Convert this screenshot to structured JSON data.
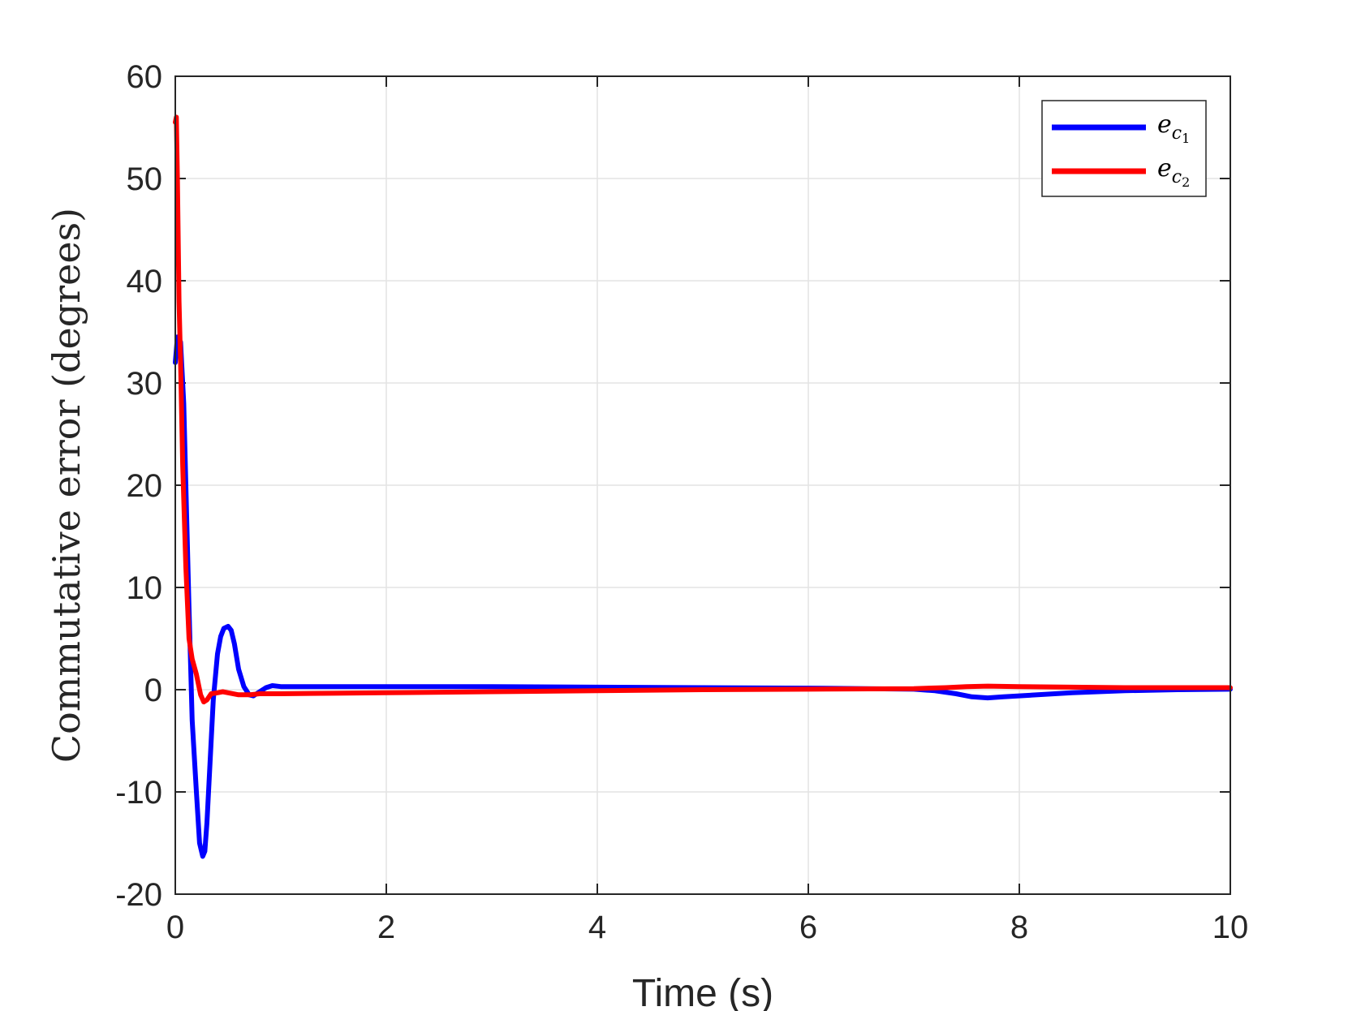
{
  "chart_data": {
    "type": "line",
    "title": "",
    "xlabel": "Time (s)",
    "ylabel": "Commutative error (degrees)",
    "xlim": [
      0,
      10
    ],
    "ylim": [
      -20,
      60
    ],
    "xticks": [
      0,
      2,
      4,
      6,
      8,
      10
    ],
    "yticks": [
      -20,
      -10,
      0,
      10,
      20,
      30,
      40,
      50,
      60
    ],
    "xtick_labels": [
      "0",
      "2",
      "4",
      "6",
      "8",
      "10"
    ],
    "ytick_labels": [
      "-20",
      "-10",
      "0",
      "10",
      "20",
      "30",
      "40",
      "50",
      "60"
    ],
    "grid": true,
    "legend_position": "top-right",
    "series": [
      {
        "name": "e_c1",
        "legend": {
          "base": "e",
          "sub": "c",
          "subsub": "1"
        },
        "color": "#0000ff",
        "x": [
          0,
          0.02,
          0.05,
          0.08,
          0.1,
          0.13,
          0.16,
          0.2,
          0.23,
          0.26,
          0.28,
          0.3,
          0.33,
          0.36,
          0.4,
          0.43,
          0.46,
          0.5,
          0.53,
          0.56,
          0.6,
          0.65,
          0.7,
          0.74,
          0.8,
          0.86,
          0.92,
          1.0,
          1.5,
          2,
          3,
          4,
          5,
          6,
          7,
          7.2,
          7.4,
          7.55,
          7.7,
          7.85,
          8,
          8.5,
          9,
          9.5,
          10
        ],
        "y": [
          32,
          34.5,
          34,
          28,
          20,
          8,
          -3,
          -10,
          -15,
          -16.3,
          -15.8,
          -13,
          -7,
          -1,
          3.5,
          5.2,
          6,
          6.2,
          5.8,
          4.5,
          2,
          0.3,
          -0.5,
          -0.6,
          -0.2,
          0.2,
          0.4,
          0.3,
          0.3,
          0.3,
          0.3,
          0.25,
          0.2,
          0.15,
          0.05,
          -0.1,
          -0.4,
          -0.7,
          -0.8,
          -0.7,
          -0.6,
          -0.3,
          -0.1,
          0.0,
          0.05
        ]
      },
      {
        "name": "e_c2",
        "legend": {
          "base": "e",
          "sub": "c",
          "subsub": "2"
        },
        "color": "#ff0000",
        "x": [
          0,
          0.01,
          0.02,
          0.035,
          0.05,
          0.07,
          0.1,
          0.13,
          0.16,
          0.2,
          0.24,
          0.27,
          0.3,
          0.34,
          0.4,
          0.45,
          0.5,
          0.6,
          0.7,
          0.8,
          1.0,
          1.5,
          2,
          3,
          4,
          5,
          6,
          7,
          7.3,
          7.5,
          7.7,
          8,
          8.5,
          9,
          9.5,
          10
        ],
        "y": [
          55.5,
          56,
          50,
          38,
          32,
          22,
          12,
          5,
          3,
          1.5,
          -0.5,
          -1.2,
          -1,
          -0.4,
          -0.3,
          -0.2,
          -0.3,
          -0.5,
          -0.5,
          -0.4,
          -0.4,
          -0.35,
          -0.3,
          -0.2,
          -0.1,
          0,
          0.05,
          0.1,
          0.2,
          0.3,
          0.35,
          0.3,
          0.25,
          0.2,
          0.2,
          0.2
        ]
      }
    ]
  }
}
